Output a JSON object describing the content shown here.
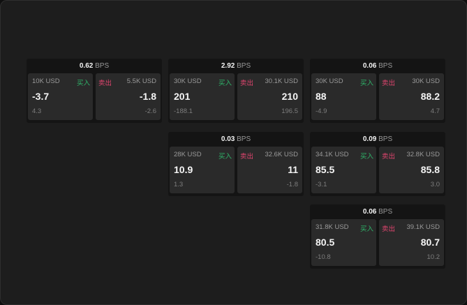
{
  "labels": {
    "buy": "买入",
    "sell": "卖出",
    "unit": "BPS"
  },
  "colors": {
    "buy": "#2fb56a",
    "sell": "#e0456f"
  },
  "cards": [
    {
      "spread": "0.62",
      "bid": {
        "size": "10K USD",
        "price": "-3.7",
        "change": "4.3"
      },
      "ask": {
        "size": "5.5K USD",
        "price": "-1.8",
        "change": "-2.6"
      }
    },
    {
      "spread": "2.92",
      "bid": {
        "size": "30K USD",
        "price": "201",
        "change": "-188.1"
      },
      "ask": {
        "size": "30.1K USD",
        "price": "210",
        "change": "196.5"
      }
    },
    {
      "spread": "0.06",
      "bid": {
        "size": "30K USD",
        "price": "88",
        "change": "-4.9"
      },
      "ask": {
        "size": "30K USD",
        "price": "88.2",
        "change": "4.7"
      }
    },
    {
      "spread": "0.03",
      "bid": {
        "size": "28K USD",
        "price": "10.9",
        "change": "1.3"
      },
      "ask": {
        "size": "32.6K USD",
        "price": "11",
        "change": "-1.8"
      }
    },
    {
      "spread": "0.09",
      "bid": {
        "size": "34.1K USD",
        "price": "85.5",
        "change": "-3.1"
      },
      "ask": {
        "size": "32.8K USD",
        "price": "85.8",
        "change": "3.0"
      }
    },
    {
      "spread": "0.06",
      "bid": {
        "size": "31.8K USD",
        "price": "80.5",
        "change": "-10.8"
      },
      "ask": {
        "size": "39.1K USD",
        "price": "80.7",
        "change": "10.2"
      }
    }
  ]
}
